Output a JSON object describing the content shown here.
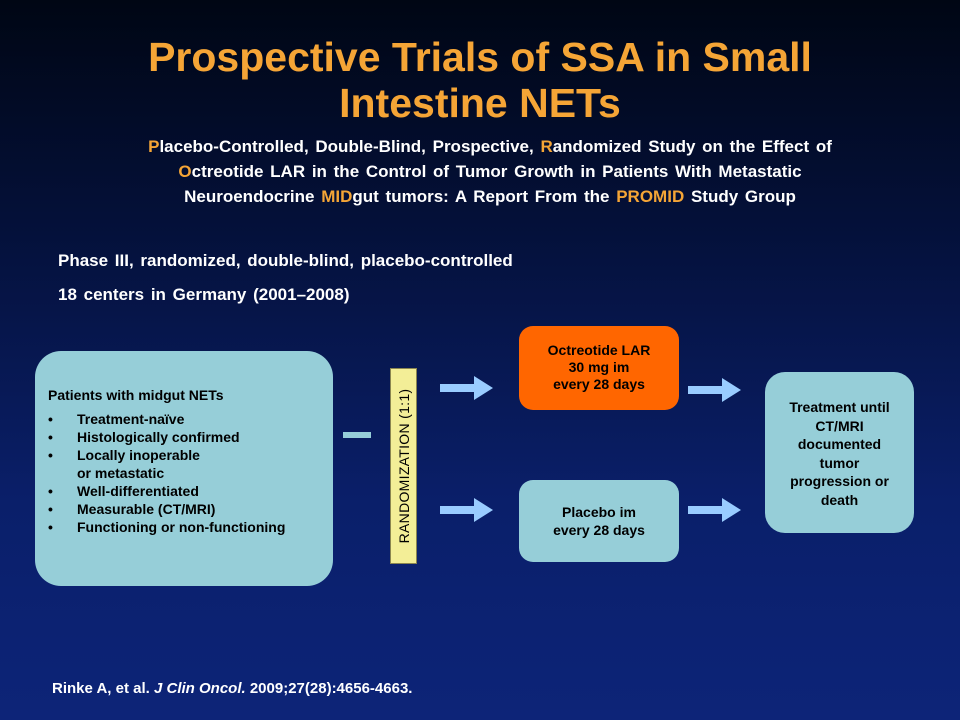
{
  "title": {
    "line1": "Prospective Trials of SSA in Small",
    "line2": "Intestine NETs"
  },
  "subtitle": {
    "line1": [
      {
        "text": "P",
        "highlight": true
      },
      {
        "text": "lacebo-Controlled, Double-Blind, Prospective, ",
        "highlight": false
      },
      {
        "text": "R",
        "highlight": true
      },
      {
        "text": "andomized Study on the Effect of",
        "highlight": false
      }
    ],
    "line2": [
      {
        "text": "O",
        "highlight": true
      },
      {
        "text": "ctreotide LAR in the Control of Tumor Growth in Patients With Metastatic",
        "highlight": false
      }
    ],
    "line3": [
      {
        "text": "Neuroendocrine ",
        "highlight": false
      },
      {
        "text": "MID",
        "highlight": true
      },
      {
        "text": "gut tumors: A Report From the ",
        "highlight": false
      },
      {
        "text": "PROMID",
        "highlight": true
      },
      {
        "text": " Study Group",
        "highlight": false
      }
    ]
  },
  "study_info": [
    "Phase III, randomized, double-blind, placebo-controlled",
    "18 centers in Germany (2001–2008)"
  ],
  "patients": {
    "header": "Patients with midgut NETs",
    "criteria": [
      {
        "line1": "Treatment-naïve"
      },
      {
        "line1": "Histologically confirmed"
      },
      {
        "line1": "Locally inoperable",
        "line2": "or metastatic"
      },
      {
        "line1": "Well-differentiated"
      },
      {
        "line1": "Measurable (CT/MRI)"
      },
      {
        "line1": "Functioning or non-functioning"
      }
    ]
  },
  "randomization_label": "RANDOMIZATION (1:1)",
  "octreotide": {
    "line1": "Octreotide LAR",
    "line2": "30 mg im",
    "line3": "every 28 days"
  },
  "placebo": {
    "line1": "Placebo im",
    "line2": "every 28 days"
  },
  "treatment": {
    "line1": "Treatment until",
    "line2": "CT/MRI",
    "line3": "documented",
    "line4": "tumor",
    "line5": "progression or",
    "line6": "death"
  },
  "citation": {
    "authors": "Rinke A, et al. ",
    "journal": "J Clin Oncol.",
    "details": " 2009;27(28):4656-4663."
  },
  "colors": {
    "title": "#f5a536",
    "box_fill": "#96ced8",
    "octreotide_fill": "#ff6600",
    "randomization_fill": "#f3ee97",
    "arrow": "#99ccff"
  }
}
